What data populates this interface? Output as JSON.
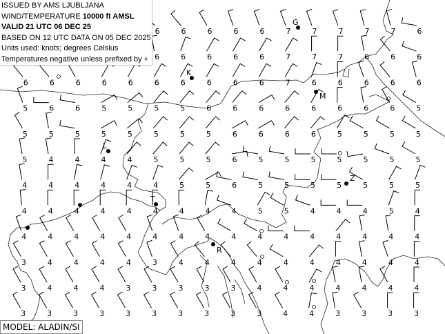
{
  "header": {
    "line1": "ISSUED BY AMS LJUBLJANA",
    "line2_prefix": "WIND/TEMPERATURE ",
    "line2_level": "10000 ft AMSL",
    "line3": "VALID 21 UTC 06 DEC 25",
    "line4": "BASED ON 12 UTC DATA ON 05 DEC 2025",
    "line5": "Units used: knots; degrees Celsius",
    "line6": "Temperatures negative unless prefixed by +"
  },
  "footer": {
    "model": "MODEL: ALADIN/SI"
  },
  "grid": {
    "temperatures": [
      [
        null,
        null,
        null,
        null,
        null,
        6,
        6,
        6,
        6,
        6,
        7,
        7,
        7,
        7,
        7,
        6
      ],
      [
        null,
        null,
        null,
        null,
        null,
        6,
        6,
        6,
        6,
        6,
        7,
        7,
        7,
        6,
        6,
        6
      ],
      [
        6,
        6,
        6,
        6,
        6,
        6,
        6,
        6,
        6,
        6,
        7,
        6,
        6,
        6,
        6,
        6
      ],
      [
        5,
        6,
        6,
        5,
        5,
        5,
        5,
        6,
        6,
        6,
        6,
        6,
        6,
        6,
        6,
        5
      ],
      [
        5,
        5,
        5,
        5,
        5,
        5,
        5,
        5,
        6,
        6,
        6,
        6,
        5,
        5,
        5,
        5
      ],
      [
        5,
        4,
        4,
        4,
        4,
        5,
        5,
        5,
        6,
        5,
        5,
        5,
        5,
        5,
        5,
        5
      ],
      [
        4,
        4,
        4,
        4,
        4,
        4,
        5,
        5,
        6,
        5,
        5,
        5,
        5,
        5,
        5,
        5
      ],
      [
        4,
        4,
        4,
        4,
        4,
        4,
        4,
        4,
        4,
        5,
        5,
        4,
        4,
        4,
        5,
        4
      ],
      [
        4,
        4,
        4,
        4,
        4,
        4,
        4,
        4,
        4,
        4,
        4,
        4,
        4,
        4,
        4,
        4
      ],
      [
        3,
        4,
        4,
        4,
        4,
        3,
        4,
        4,
        4,
        4,
        4,
        4,
        4,
        4,
        4,
        4
      ],
      [
        3,
        4,
        4,
        4,
        3,
        3,
        3,
        3,
        3,
        4,
        4,
        4,
        4,
        4,
        4,
        4
      ],
      [
        3,
        3,
        3,
        3,
        3,
        3,
        3,
        3,
        3,
        3,
        4,
        4,
        3,
        3,
        3,
        3
      ]
    ],
    "wind_direction_deg": [
      [
        330,
        330,
        330,
        330,
        330,
        320,
        320,
        330,
        340,
        340,
        340,
        340,
        340,
        345,
        345,
        280
      ],
      [
        340,
        340,
        340,
        340,
        340,
        350,
        20,
        30,
        30,
        30,
        30,
        0,
        0,
        350,
        320,
        290
      ],
      [
        320,
        320,
        330,
        30,
        30,
        30,
        30,
        30,
        30,
        30,
        30,
        20,
        0,
        340,
        320,
        345
      ],
      [
        340,
        270,
        280,
        60,
        50,
        40,
        40,
        40,
        40,
        60,
        40,
        30,
        0,
        350,
        330,
        300
      ],
      [
        330,
        350,
        280,
        60,
        50,
        40,
        40,
        40,
        60,
        60,
        40,
        40,
        30,
        300,
        300,
        300
      ],
      [
        350,
        350,
        0,
        20,
        40,
        40,
        40,
        40,
        80,
        280,
        280,
        270,
        270,
        260,
        290,
        300
      ],
      [
        350,
        0,
        10,
        15,
        20,
        20,
        40,
        60,
        280,
        280,
        280,
        270,
        270,
        300,
        30,
        20
      ],
      [
        355,
        0,
        0,
        0,
        0,
        0,
        0,
        10,
        290,
        30,
        300,
        290,
        270,
        270,
        20,
        0
      ],
      [
        340,
        330,
        330,
        330,
        330,
        340,
        340,
        330,
        300,
        300,
        270,
        270,
        40,
        350,
        350,
        0
      ],
      [
        330,
        330,
        330,
        330,
        330,
        340,
        330,
        320,
        320,
        320,
        300,
        40,
        0,
        350,
        340,
        0
      ],
      [
        330,
        330,
        330,
        330,
        330,
        330,
        330,
        330,
        330,
        330,
        330,
        30,
        350,
        350,
        330,
        0
      ],
      [
        330,
        330,
        330,
        330,
        330,
        330,
        330,
        330,
        330,
        330,
        330,
        10,
        350,
        330,
        0,
        0
      ]
    ],
    "wind_speed_kt": 10
  },
  "stations": [
    {
      "label": "G",
      "type": "city"
    },
    {
      "label": "K",
      "type": "city"
    },
    {
      "label": "M",
      "type": "city"
    },
    {
      "label": "L",
      "type": "city"
    },
    {
      "label": "Z",
      "type": "city"
    },
    {
      "label": "T",
      "type": "city"
    },
    {
      "label": "R",
      "type": "city"
    },
    {
      "label": "",
      "type": "city"
    },
    {
      "label": "",
      "type": "city"
    }
  ]
}
